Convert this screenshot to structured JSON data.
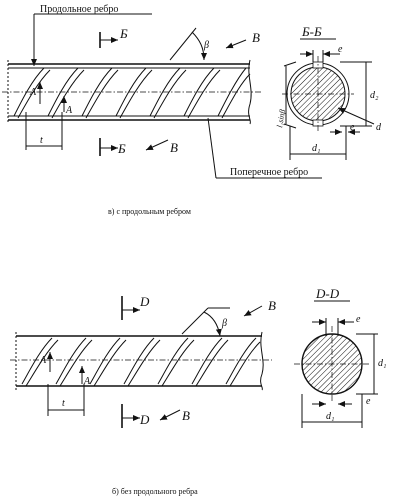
{
  "figure_a": {
    "callout_longitudinal": "Продольное ребро",
    "callout_transverse": "Поперечное ребро",
    "section_letter": "Б",
    "section_title": "Б-Б",
    "view_letter": "В",
    "view_a": "A",
    "angle": "β",
    "pitch": "t",
    "dim_e": "e",
    "dim_d": "d",
    "dim_d1": "d₁",
    "dim_d2": "d₂",
    "dim_l": "l₁sinβ",
    "caption": "в) с продольным ребром"
  },
  "figure_b": {
    "section_letter": "D",
    "section_title": "D-D",
    "view_letter": "B",
    "view_a": "A",
    "angle": "β",
    "pitch": "t",
    "dim_e": "e",
    "dim_d1": "d₁",
    "caption": "б) без продольного ребра"
  }
}
